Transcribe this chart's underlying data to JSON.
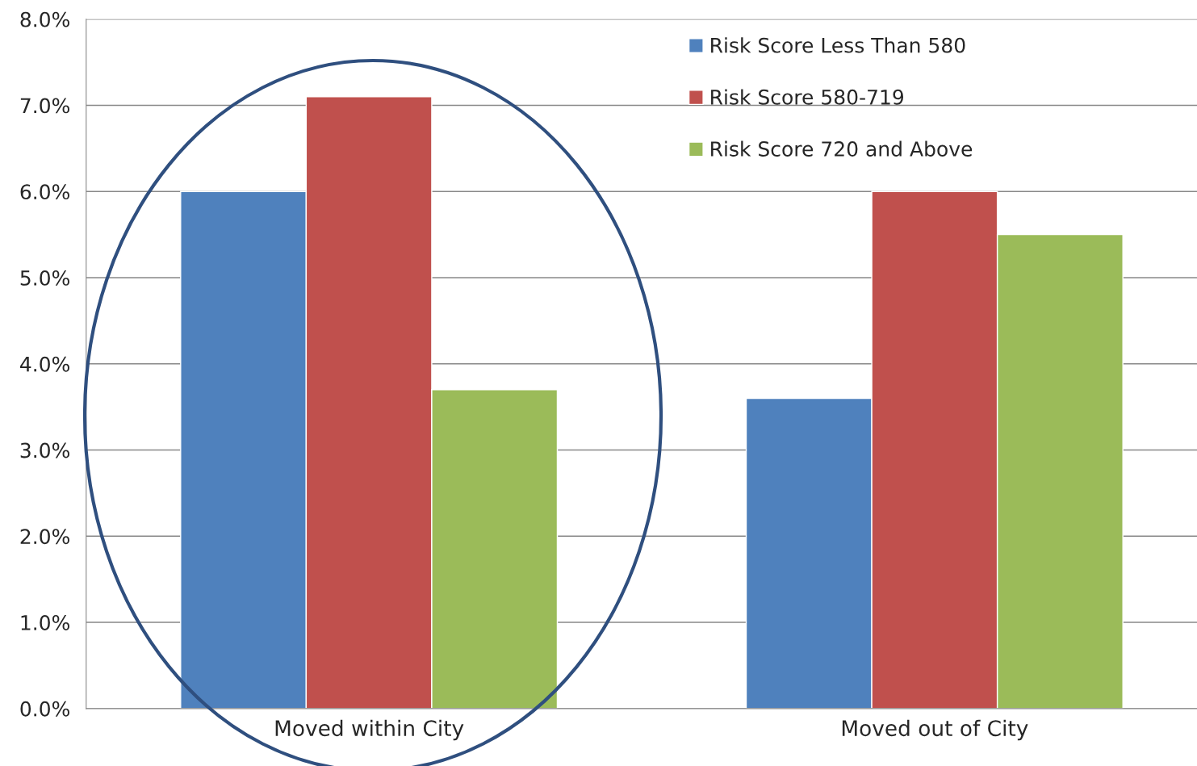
{
  "chart_data": {
    "type": "bar",
    "categories": [
      "Moved within City",
      "Moved out of City"
    ],
    "series": [
      {
        "name": "Risk Score Less Than 580",
        "color": "#4f81bd",
        "values": [
          6.0,
          3.6
        ]
      },
      {
        "name": "Risk Score 580-719",
        "color": "#c0504d",
        "values": [
          7.1,
          6.0
        ]
      },
      {
        "name": "Risk Score 720 and Above",
        "color": "#9bbb59",
        "values": [
          3.7,
          5.5
        ]
      }
    ],
    "ylim": [
      0,
      8
    ],
    "yticks": [
      {
        "value": 0,
        "label": "0.0%"
      },
      {
        "value": 1,
        "label": "1.0%"
      },
      {
        "value": 2,
        "label": "2.0%"
      },
      {
        "value": 3,
        "label": "3.0%"
      },
      {
        "value": 4,
        "label": "4.0%"
      },
      {
        "value": 5,
        "label": "5.0%"
      },
      {
        "value": 6,
        "label": "6.0%"
      },
      {
        "value": 7,
        "label": "7.0%"
      },
      {
        "value": 8,
        "label": "8.0%"
      }
    ],
    "grid": "y",
    "legend": "top right"
  }
}
